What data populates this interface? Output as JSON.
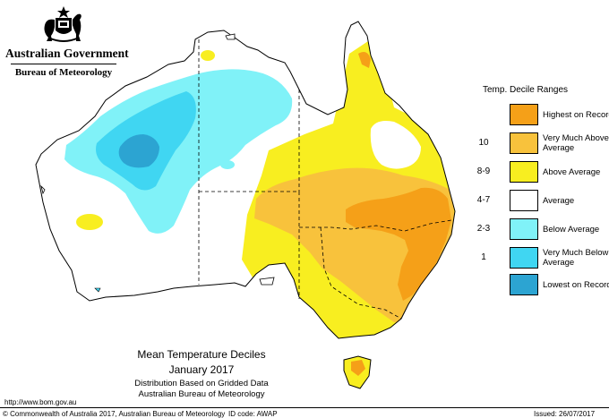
{
  "header": {
    "gov_name": "Australian Government",
    "bureau_name": "Bureau of Meteorology"
  },
  "legend": {
    "title": "Temp. Decile Ranges",
    "items": [
      {
        "key": "",
        "label": "Highest on Record",
        "color": "#f5a018"
      },
      {
        "key": "10",
        "label": "Very Much Above Average",
        "color": "#f8c23c"
      },
      {
        "key": "8-9",
        "label": "Above Average",
        "color": "#f8ee20"
      },
      {
        "key": "4-7",
        "label": "Average",
        "color": "#ffffff"
      },
      {
        "key": "2-3",
        "label": "Below Average",
        "color": "#80f2f8"
      },
      {
        "key": "1",
        "label": "Very Much Below Average",
        "color": "#40d6f2"
      },
      {
        "key": "",
        "label": "Lowest on Record",
        "color": "#2ca4d2"
      }
    ]
  },
  "caption": {
    "title": "Mean Temperature Deciles",
    "date": "January 2017",
    "sub1": "Distribution Based on Gridded Data",
    "sub2": "Australian Bureau of Meteorology"
  },
  "footer": {
    "url": "http://www.bom.gov.au",
    "copyright": "© Commonwealth of Australia 2017, Australian Bureau of Meteorology",
    "id_code": "ID code: AWAP",
    "issued": "Issued: 26/07/2017"
  },
  "colors": {
    "highest": "#f5a018",
    "very_much_above": "#f8c23c",
    "above": "#f8ee20",
    "average": "#ffffff",
    "below": "#80f2f8",
    "very_much_below": "#40d6f2",
    "lowest": "#2ca4d2"
  }
}
